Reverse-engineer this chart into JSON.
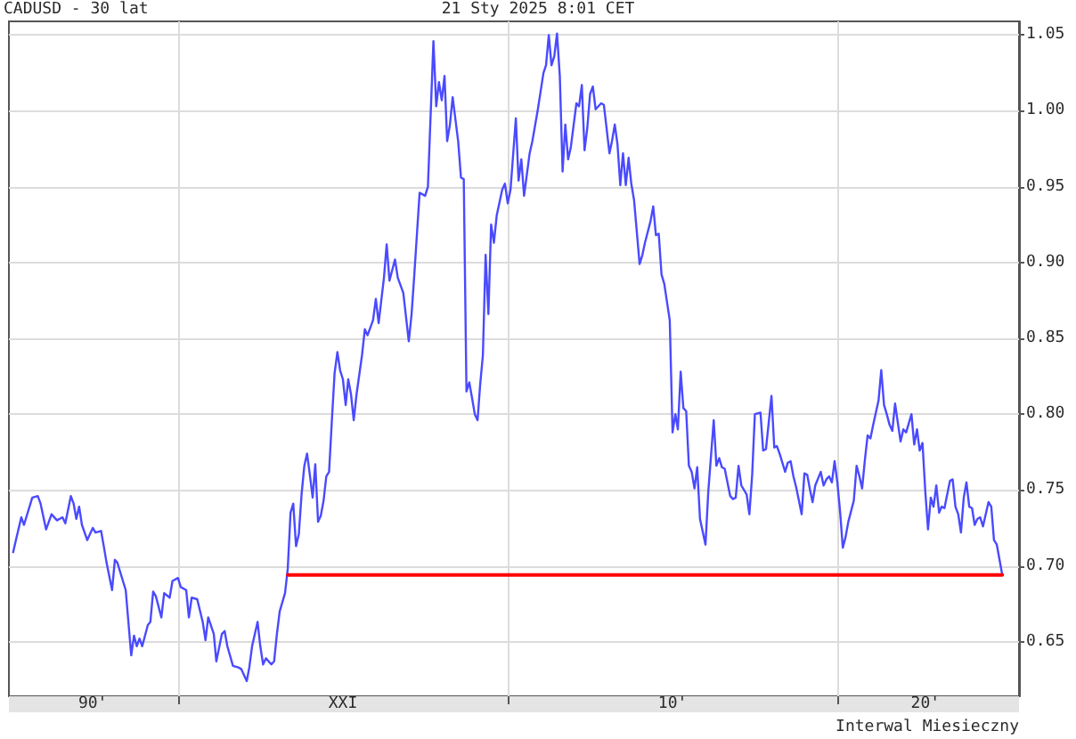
{
  "chart_data": {
    "type": "line",
    "title": "CADUSD - 30 lat",
    "subtitle": "21 Sty 2025 8:01 CET",
    "annotations": [
      "Interwal Miesieczny"
    ],
    "series": [
      {
        "color": "#4a4aff",
        "x": [
          "1995-01",
          "1995-02",
          "1995-04",
          "1995-05",
          "1995-08",
          "1995-10",
          "1995-11",
          "1996-01",
          "1996-03",
          "1996-05",
          "1996-07",
          "1996-08",
          "1996-10",
          "1996-11",
          "1996-12",
          "1997-01",
          "1997-02",
          "1997-04",
          "1997-06",
          "1997-07",
          "1997-09",
          "1997-10",
          "1997-11",
          "1998-01",
          "1998-02",
          "1998-03",
          "1998-06",
          "1998-08",
          "1998-09",
          "1998-10",
          "1998-11",
          "1998-12",
          "1999-02",
          "1999-03",
          "1999-04",
          "1999-05",
          "1999-07",
          "1999-08",
          "1999-10",
          "1999-11",
          "2000-01",
          "2000-02",
          "2000-04",
          "2000-05",
          "2000-06",
          "2000-08",
          "2000-10",
          "2000-11",
          "2000-12",
          "2001-02",
          "2001-03",
          "2001-05",
          "2001-06",
          "2001-07",
          "2001-09",
          "2001-11",
          "2001-12",
          "2002-02",
          "2002-03",
          "2002-04",
          "2002-06",
          "2002-07",
          "2002-08",
          "2002-09",
          "2002-11",
          "2002-12",
          "2003-01",
          "2003-02",
          "2003-04",
          "2003-05",
          "2003-06",
          "2003-07",
          "2003-08",
          "2003-09",
          "2003-10",
          "2003-11",
          "2003-12",
          "2004-01",
          "2004-02",
          "2004-03",
          "2004-04",
          "2004-05",
          "2004-06",
          "2004-07",
          "2004-08",
          "2004-09",
          "2004-10",
          "2004-11",
          "2004-12",
          "2005-01",
          "2005-02",
          "2005-03",
          "2005-04",
          "2005-05",
          "2005-06",
          "2005-08",
          "2005-09",
          "2005-10",
          "2005-12",
          "2006-01",
          "2006-02",
          "2006-04",
          "2006-05",
          "2006-06",
          "2006-08",
          "2006-09",
          "2006-11",
          "2007-01",
          "2007-02",
          "2007-03",
          "2007-05",
          "2007-07",
          "2007-08",
          "2007-10",
          "2007-11",
          "2007-12",
          "2008-01",
          "2008-02",
          "2008-03",
          "2008-04",
          "2008-05",
          "2008-07",
          "2008-08",
          "2008-09",
          "2008-10",
          "2008-11",
          "2008-12",
          "2009-01",
          "2009-02",
          "2009-03",
          "2009-04",
          "2009-05",
          "2009-06",
          "2009-07",
          "2009-08",
          "2009-09",
          "2009-11",
          "2009-12",
          "2010-01",
          "2010-02",
          "2010-04",
          "2010-05",
          "2010-06",
          "2010-07",
          "2010-09",
          "2010-10",
          "2010-12",
          "2011-02",
          "2011-03",
          "2011-04",
          "2011-05",
          "2011-06",
          "2011-07",
          "2011-08",
          "2011-09",
          "2011-10",
          "2011-11",
          "2011-12",
          "2012-02",
          "2012-03",
          "2012-04",
          "2012-05",
          "2012-06",
          "2012-07",
          "2012-08",
          "2012-09",
          "2012-11",
          "2012-12",
          "2013-02",
          "2013-03",
          "2013-04",
          "2013-05",
          "2013-06",
          "2013-07",
          "2013-08",
          "2013-09",
          "2013-10",
          "2013-11",
          "2014-01",
          "2014-02",
          "2014-03",
          "2014-05",
          "2014-06",
          "2014-07",
          "2014-08",
          "2014-09",
          "2014-10",
          "2014-12",
          "2015-01",
          "2015-02",
          "2015-03",
          "2015-04",
          "2015-05",
          "2015-06",
          "2015-07",
          "2015-08",
          "2015-09",
          "2015-10",
          "2015-11",
          "2016-01",
          "2016-02",
          "2016-04",
          "2016-05",
          "2016-06",
          "2016-07",
          "2016-08",
          "2016-10",
          "2016-11",
          "2016-12",
          "2017-01",
          "2017-02",
          "2017-04",
          "2017-05",
          "2017-06",
          "2017-07",
          "2017-09",
          "2017-10",
          "2017-11",
          "2018-01",
          "2018-02",
          "2018-03",
          "2018-04",
          "2018-06",
          "2018-07",
          "2018-08",
          "2018-09",
          "2018-10",
          "2018-11",
          "2018-12",
          "2019-01",
          "2019-02",
          "2019-03",
          "2019-04",
          "2019-05",
          "2019-07",
          "2019-08",
          "2019-09",
          "2019-10",
          "2019-11",
          "2019-12",
          "2020-01",
          "2020-02",
          "2020-03",
          "2020-04",
          "2020-05",
          "2020-07",
          "2020-08",
          "2020-09",
          "2020-10",
          "2020-11",
          "2020-12",
          "2021-01",
          "2021-02",
          "2021-04",
          "2021-05",
          "2021-06",
          "2021-07",
          "2021-08",
          "2021-09",
          "2021-10",
          "2021-12",
          "2022-01",
          "2022-02",
          "2022-04",
          "2022-05",
          "2022-06",
          "2022-07",
          "2022-08",
          "2022-09",
          "2022-10",
          "2022-11",
          "2022-12",
          "2023-01",
          "2023-02",
          "2023-03",
          "2023-04",
          "2023-06",
          "2023-07",
          "2023-08",
          "2023-09",
          "2023-10",
          "2023-11",
          "2023-12",
          "2024-01",
          "2024-02",
          "2024-03",
          "2024-04",
          "2024-05",
          "2024-06",
          "2024-08",
          "2024-09",
          "2024-10",
          "2024-11",
          "2025-01"
        ],
        "values": [
          0.709,
          0.717,
          0.732,
          0.727,
          0.745,
          0.746,
          0.741,
          0.724,
          0.734,
          0.73,
          0.732,
          0.728,
          0.746,
          0.741,
          0.731,
          0.739,
          0.727,
          0.717,
          0.725,
          0.722,
          0.723,
          0.713,
          0.702,
          0.684,
          0.704,
          0.702,
          0.684,
          0.641,
          0.654,
          0.647,
          0.652,
          0.647,
          0.661,
          0.663,
          0.683,
          0.68,
          0.666,
          0.682,
          0.679,
          0.69,
          0.692,
          0.686,
          0.684,
          0.666,
          0.679,
          0.678,
          0.663,
          0.651,
          0.666,
          0.655,
          0.637,
          0.655,
          0.657,
          0.647,
          0.634,
          0.633,
          0.632,
          0.624,
          0.633,
          0.647,
          0.663,
          0.647,
          0.635,
          0.639,
          0.635,
          0.637,
          0.655,
          0.67,
          0.682,
          0.698,
          0.735,
          0.741,
          0.713,
          0.721,
          0.747,
          0.766,
          0.774,
          0.76,
          0.745,
          0.767,
          0.729,
          0.733,
          0.743,
          0.759,
          0.762,
          0.796,
          0.827,
          0.841,
          0.829,
          0.823,
          0.806,
          0.823,
          0.813,
          0.796,
          0.813,
          0.839,
          0.856,
          0.852,
          0.862,
          0.876,
          0.86,
          0.89,
          0.912,
          0.888,
          0.902,
          0.89,
          0.88,
          0.848,
          0.866,
          0.89,
          0.946,
          0.944,
          0.95,
          1.046,
          1.003,
          1.019,
          1.007,
          1.023,
          0.98,
          0.991,
          1.009,
          0.98,
          0.956,
          0.955,
          0.815,
          0.821,
          0.811,
          0.8,
          0.796,
          0.819,
          0.839,
          0.905,
          0.866,
          0.925,
          0.913,
          0.931,
          0.948,
          0.952,
          0.939,
          0.948,
          0.995,
          0.954,
          0.968,
          0.944,
          0.972,
          0.98,
          1.001,
          1.025,
          1.03,
          1.05,
          1.03,
          1.036,
          1.051,
          1.023,
          0.96,
          0.991,
          0.968,
          0.976,
          1.005,
          1.003,
          1.017,
          0.974,
          0.989,
          1.011,
          1.016,
          1.001,
          1.005,
          1.004,
          0.972,
          0.98,
          0.991,
          0.978,
          0.951,
          0.972,
          0.951,
          0.969,
          0.952,
          0.941,
          0.899,
          0.905,
          0.913,
          0.927,
          0.937,
          0.918,
          0.919,
          0.892,
          0.886,
          0.862,
          0.788,
          0.8,
          0.79,
          0.828,
          0.804,
          0.802,
          0.766,
          0.762,
          0.751,
          0.765,
          0.731,
          0.714,
          0.749,
          0.796,
          0.766,
          0.771,
          0.765,
          0.764,
          0.746,
          0.744,
          0.745,
          0.766,
          0.753,
          0.747,
          0.734,
          0.76,
          0.8,
          0.801,
          0.776,
          0.777,
          0.812,
          0.778,
          0.779,
          0.774,
          0.762,
          0.768,
          0.769,
          0.759,
          0.752,
          0.743,
          0.734,
          0.761,
          0.76,
          0.751,
          0.742,
          0.753,
          0.762,
          0.753,
          0.757,
          0.759,
          0.755,
          0.769,
          0.755,
          0.735,
          0.712,
          0.719,
          0.729,
          0.743,
          0.766,
          0.759,
          0.751,
          0.77,
          0.786,
          0.784,
          0.793,
          0.809,
          0.829,
          0.806,
          0.8,
          0.793,
          0.789,
          0.807,
          0.782,
          0.79,
          0.788,
          0.8,
          0.78,
          0.79,
          0.776,
          0.781,
          0.749,
          0.724,
          0.745,
          0.739,
          0.753,
          0.735,
          0.739,
          0.738,
          0.756,
          0.757,
          0.739,
          0.734,
          0.722,
          0.745,
          0.755,
          0.739,
          0.738,
          0.727,
          0.731,
          0.732,
          0.726,
          0.742,
          0.739,
          0.717,
          0.714,
          0.694
        ]
      },
      {
        "color": "#ff0000",
        "x": [
          "2003-05",
          "2025-01"
        ],
        "values": [
          0.694,
          0.694
        ]
      }
    ],
    "xlim": [
      "1994-11-15",
      "2025-07-05"
    ],
    "xticks": [
      {
        "value": "1997-06",
        "label": "90'"
      },
      {
        "value": "2000-01",
        "label": null
      },
      {
        "value": "2005-01",
        "label": "XXI"
      },
      {
        "value": "2010-01",
        "label": null
      },
      {
        "value": "2015-01",
        "label": "10'"
      },
      {
        "value": "2020-01",
        "label": null
      },
      {
        "value": "2022-09",
        "label": "20'"
      }
    ],
    "ylim": [
      0.614,
      1.059
    ],
    "yticks": [
      0.65,
      {
        "value": 0.7,
        "label": "0.70"
      },
      0.75,
      {
        "value": 0.8,
        "label": "0.80"
      },
      0.85,
      {
        "value": 0.9,
        "label": "0.90"
      },
      0.95,
      {
        "value": 1.0,
        "label": "1.00"
      },
      1.05
    ],
    "grid": true,
    "marker": "none",
    "line_style": "solid"
  }
}
